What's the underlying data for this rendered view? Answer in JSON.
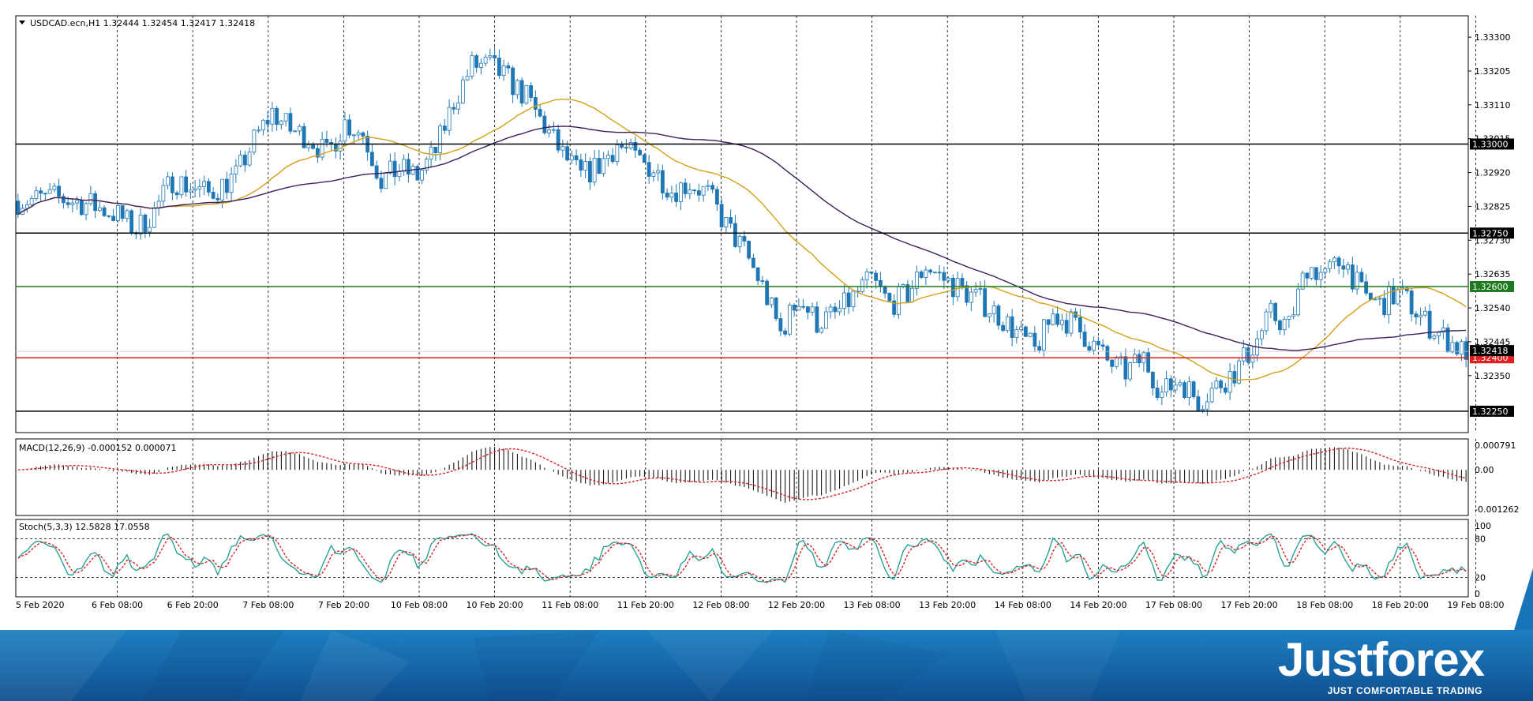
{
  "chart_data": {
    "type": "candlestick",
    "symbol_header": "USDCAD.ecn,H1",
    "ohlc_header": [
      "1.32444",
      "1.32454",
      "1.32417",
      "1.32418"
    ],
    "price_axis": {
      "ylim": [
        1.3219,
        1.3336
      ],
      "tick_labels": [
        "1.33300",
        "1.33205",
        "1.33110",
        "1.33015",
        "1.32920",
        "1.32825",
        "1.32730",
        "1.32635",
        "1.32540",
        "1.32445",
        "1.32350"
      ]
    },
    "horizontal_levels": [
      {
        "value": 1.33,
        "label": "1.33000",
        "color": "#000000"
      },
      {
        "value": 1.3275,
        "label": "1.32750",
        "color": "#000000"
      },
      {
        "value": 1.326,
        "label": "1.32600",
        "color": "#1e7a1e"
      },
      {
        "value": 1.324,
        "label": "1.32400",
        "color": "#e01f1f"
      },
      {
        "value": 1.3225,
        "label": "1.32250",
        "color": "#000000"
      }
    ],
    "current_price": {
      "value": 1.32418,
      "label": "1.32418"
    },
    "price_path": [
      [
        0,
        1.3284
      ],
      [
        8,
        1.3285
      ],
      [
        16,
        1.3283
      ],
      [
        22,
        1.328
      ],
      [
        26,
        1.3276
      ],
      [
        30,
        1.3281
      ],
      [
        34,
        1.329
      ],
      [
        38,
        1.3288
      ],
      [
        42,
        1.3286
      ],
      [
        48,
        1.3291
      ],
      [
        52,
        1.3301
      ],
      [
        56,
        1.3309
      ],
      [
        60,
        1.3304
      ],
      [
        64,
        1.3302
      ],
      [
        68,
        1.3297
      ],
      [
        72,
        1.3306
      ],
      [
        76,
        1.3303
      ],
      [
        80,
        1.329
      ],
      [
        84,
        1.3293
      ],
      [
        88,
        1.3291
      ],
      [
        92,
        1.3298
      ],
      [
        96,
        1.3312
      ],
      [
        100,
        1.3322
      ],
      [
        104,
        1.3322
      ],
      [
        108,
        1.3318
      ],
      [
        112,
        1.3313
      ],
      [
        116,
        1.3305
      ],
      [
        120,
        1.3297
      ],
      [
        124,
        1.3291
      ],
      [
        128,
        1.3294
      ],
      [
        132,
        1.33
      ],
      [
        136,
        1.3296
      ],
      [
        140,
        1.3293
      ],
      [
        144,
        1.3287
      ],
      [
        148,
        1.3289
      ],
      [
        152,
        1.3286
      ],
      [
        156,
        1.3277
      ],
      [
        160,
        1.327
      ],
      [
        164,
        1.326
      ],
      [
        168,
        1.3247
      ],
      [
        172,
        1.3257
      ],
      [
        176,
        1.325
      ],
      [
        180,
        1.3252
      ],
      [
        184,
        1.3257
      ],
      [
        188,
        1.3262
      ],
      [
        192,
        1.3255
      ],
      [
        196,
        1.3258
      ],
      [
        200,
        1.3266
      ],
      [
        204,
        1.3262
      ],
      [
        208,
        1.3259
      ],
      [
        212,
        1.3256
      ],
      [
        216,
        1.3252
      ],
      [
        220,
        1.3247
      ],
      [
        224,
        1.3242
      ],
      [
        228,
        1.3252
      ],
      [
        232,
        1.325
      ],
      [
        236,
        1.3245
      ],
      [
        240,
        1.3239
      ],
      [
        244,
        1.3236
      ],
      [
        248,
        1.324
      ],
      [
        252,
        1.323
      ],
      [
        256,
        1.3234
      ],
      [
        260,
        1.3228
      ],
      [
        264,
        1.3232
      ],
      [
        268,
        1.3236
      ],
      [
        272,
        1.3243
      ],
      [
        276,
        1.3252
      ],
      [
        280,
        1.3249
      ],
      [
        284,
        1.3266
      ],
      [
        288,
        1.3263
      ],
      [
        292,
        1.3268
      ],
      [
        296,
        1.3258
      ],
      [
        300,
        1.3255
      ],
      [
        304,
        1.3258
      ],
      [
        306,
        1.3256
      ],
      [
        310,
        1.325
      ],
      [
        314,
        1.3246
      ],
      [
        318,
        1.3242
      ]
    ],
    "indicators": {
      "ma_short_color": "#d4a017",
      "ma_long_color": "#3b1f5e"
    },
    "macd": {
      "header": "MACD(12,26,9) -0.000152 0.000071",
      "tick_labels": [
        "0.000791",
        "0.00",
        "-0.001262"
      ]
    },
    "stoch": {
      "header": "Stoch(5,3,3) 12.5828 17.0558",
      "tick_labels": [
        "100",
        "80",
        "20",
        "0"
      ]
    },
    "time_axis": {
      "tick_labels": [
        "5 Feb 2020",
        "6 Feb 08:00",
        "6 Feb 20:00",
        "7 Feb 08:00",
        "7 Feb 20:00",
        "10 Feb 08:00",
        "10 Feb 20:00",
        "11 Feb 08:00",
        "11 Feb 20:00",
        "12 Feb 08:00",
        "12 Feb 20:00",
        "13 Feb 08:00",
        "13 Feb 20:00",
        "14 Feb 08:00",
        "14 Feb 20:00",
        "17 Feb 08:00",
        "17 Feb 20:00",
        "18 Feb 08:00",
        "18 Feb 20:00",
        "19 Feb 08:00"
      ]
    },
    "colors": {
      "bull_candle": "#ffffff",
      "bear_candle": "#1f77b4",
      "candle_outline": "#1f77b4",
      "stoch_main": "#2aa198",
      "stoch_signal": "#d62728",
      "macd_signal": "#d62728"
    }
  },
  "footer": {
    "logo": "Justforex",
    "tagline": "JUST COMFORTABLE TRADING"
  }
}
